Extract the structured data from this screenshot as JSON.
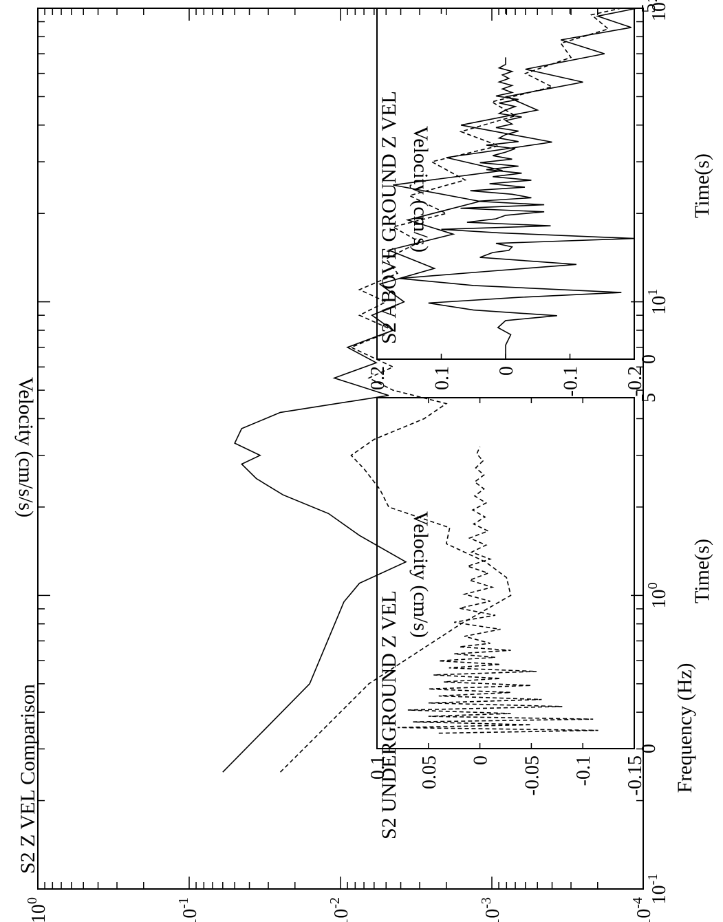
{
  "orientation": "rotated 90 degrees clockwise (landscape figure printed on portrait page)",
  "chart_data": [
    {
      "type": "line",
      "title": "S2 Z VEL Comparison",
      "xlabel": "Frequency (Hz)",
      "ylabel": "Velocity (cm/s/s)",
      "xscale": "log",
      "yscale": "log",
      "xlim": [
        0.1,
        100
      ],
      "ylim": [
        0.0001,
        1
      ],
      "xticks": [
        {
          "value": 0.1,
          "base": "10",
          "exp": "-1"
        },
        {
          "value": 1,
          "base": "10",
          "exp": "0"
        },
        {
          "value": 10,
          "base": "10",
          "exp": "1"
        },
        {
          "value": 100,
          "base": "10",
          "exp": "2"
        }
      ],
      "yticks": [
        {
          "value": 1,
          "base": "10",
          "exp": "0"
        },
        {
          "value": 0.1,
          "base": "10",
          "exp": "-1"
        },
        {
          "value": 0.01,
          "base": "10",
          "exp": "-2"
        },
        {
          "value": 0.001,
          "base": "10",
          "exp": "-3"
        },
        {
          "value": 0.0001,
          "base": "10",
          "exp": "-4"
        }
      ],
      "series": [
        {
          "style": "solid",
          "x": [
            0.25,
            0.5,
            0.95,
            1.1,
            1.3,
            1.6,
            1.9,
            2.2,
            2.5,
            2.8,
            3.0,
            3.3,
            3.7,
            4.2,
            4.8,
            5.5,
            6.2,
            7.0,
            8.0,
            9.0,
            10.0,
            11.5,
            13.0,
            15.0,
            17.0,
            19.0,
            22.0,
            25.0,
            28.0,
            31.0,
            35.0,
            40.0,
            45.0,
            50.0,
            56.0,
            62.0,
            70.0,
            78.0,
            86.0,
            94.0,
            100.0
          ],
          "y": [
            0.06,
            0.016,
            0.0095,
            0.0075,
            0.0037,
            0.0075,
            0.012,
            0.024,
            0.036,
            0.045,
            0.034,
            0.05,
            0.045,
            0.025,
            0.0048,
            0.011,
            0.0058,
            0.009,
            0.0045,
            0.0062,
            0.0038,
            0.0055,
            0.0024,
            0.0048,
            0.0018,
            0.0036,
            0.0012,
            0.0045,
            0.00085,
            0.002,
            0.0004,
            0.0016,
            0.0005,
            0.0008,
            0.00025,
            0.0006,
            0.00018,
            0.00035,
            0.00012,
            0.0002,
            0.00011
          ]
        },
        {
          "style": "dashed",
          "x": [
            0.25,
            0.5,
            0.8,
            1.0,
            1.15,
            1.3,
            1.5,
            1.7,
            2.0,
            2.3,
            2.7,
            3.0,
            3.4,
            4.0,
            4.5,
            5.0,
            5.5,
            6.0,
            7.0,
            8.0,
            9.0,
            10.0,
            11.0,
            12.5,
            14.0,
            16.0,
            18.0,
            20.0,
            23.0,
            26.0,
            30.0,
            34.0,
            38.0,
            43.0,
            48.0,
            54.0,
            60.0,
            68.0,
            76.0,
            85.0,
            95.0,
            100.0
          ],
          "y": [
            0.025,
            0.0065,
            0.0016,
            0.00075,
            0.0008,
            0.0011,
            0.002,
            0.0019,
            0.0048,
            0.0055,
            0.007,
            0.0085,
            0.006,
            0.0028,
            0.002,
            0.0045,
            0.0065,
            0.0045,
            0.0085,
            0.0045,
            0.0075,
            0.005,
            0.0075,
            0.0042,
            0.005,
            0.003,
            0.0045,
            0.002,
            0.0035,
            0.0015,
            0.0025,
            0.0009,
            0.0016,
            0.0007,
            0.001,
            0.0004,
            0.0006,
            0.0003,
            0.00035,
            0.00017,
            0.00022,
            0.00014
          ]
        }
      ]
    },
    {
      "type": "line",
      "title": "S2 ABOVE GROUND Z VEL",
      "xlabel": "Time(s)",
      "ylabel": "Velocity (cm/s)",
      "xlim": [
        0,
        5
      ],
      "ylim": [
        -0.2,
        0.2
      ],
      "xticks": [
        "0",
        "5"
      ],
      "yticks": [
        "0.2",
        "0.1",
        "0",
        "-0.1",
        "-0.2"
      ],
      "series": [
        {
          "style": "solid",
          "x": [
            0.0,
            0.2,
            0.35,
            0.45,
            0.55,
            0.62,
            0.7,
            0.8,
            0.88,
            0.95,
            1.05,
            1.15,
            1.25,
            1.35,
            1.45,
            1.52,
            1.55,
            1.6,
            1.65,
            1.72,
            1.8,
            1.85,
            1.9,
            1.95,
            2.0,
            2.05,
            2.1,
            2.15,
            2.2,
            2.25,
            2.3,
            2.35,
            2.4,
            2.45,
            2.5,
            2.55,
            2.6,
            2.65,
            2.7,
            2.75,
            2.8,
            2.85,
            2.9,
            2.95,
            3.0,
            3.05,
            3.1,
            3.15,
            3.2,
            3.25,
            3.3,
            3.35,
            3.4,
            3.45,
            3.5,
            3.55,
            3.6,
            3.65,
            3.7,
            3.75,
            3.8,
            3.85,
            3.9,
            3.95,
            4.0,
            4.05,
            4.1,
            4.15,
            4.2,
            4.3
          ],
          "y": [
            0.0,
            0.0,
            -0.008,
            0.012,
            0.0,
            -0.08,
            0.05,
            0.12,
            -0.02,
            -0.18,
            0.05,
            0.165,
            0.03,
            -0.11,
            0.04,
            0.02,
            -0.005,
            -0.01,
            0.015,
            -0.2,
            0.01,
            0.1,
            -0.07,
            0.06,
            0.015,
            0.0,
            -0.06,
            0.07,
            -0.06,
            0.045,
            -0.04,
            -0.01,
            0.055,
            -0.03,
            0.025,
            -0.04,
            0.02,
            -0.025,
            0.03,
            -0.02,
            0.04,
            -0.01,
            0.02,
            0.0,
            -0.015,
            0.03,
            -0.02,
            0.01,
            0.0,
            -0.02,
            0.015,
            -0.01,
            0.0,
            -0.025,
            0.01,
            0.0,
            -0.015,
            0.01,
            -0.02,
            0.015,
            -0.01,
            0.005,
            -0.01,
            0.01,
            -0.005,
            0.005,
            -0.01,
            0.01,
            0.0,
            0.0
          ]
        }
      ]
    },
    {
      "type": "line",
      "title": "S2 UNDERGROUND Z VEL",
      "xlabel": "Time(s)",
      "ylabel": "Velocity (cm/s)",
      "xlim": [
        0,
        5
      ],
      "ylim": [
        -0.15,
        0.1
      ],
      "xticks": [
        "0",
        "5"
      ],
      "yticks": [
        "0.1",
        "0.05",
        "0",
        "-0.05",
        "-0.1",
        "-0.15"
      ],
      "series": [
        {
          "style": "dashed",
          "x": [
            0.22,
            0.26,
            0.3,
            0.34,
            0.38,
            0.42,
            0.46,
            0.5,
            0.55,
            0.6,
            0.65,
            0.7,
            0.75,
            0.8,
            0.85,
            0.9,
            0.95,
            1.0,
            1.05,
            1.1,
            1.15,
            1.2,
            1.25,
            1.3,
            1.35,
            1.4,
            1.45,
            1.5,
            1.6,
            1.7,
            1.8,
            1.9,
            2.0,
            2.1,
            2.2,
            2.3,
            2.4,
            2.5,
            2.6,
            2.7,
            2.8,
            2.9,
            3.0,
            3.1,
            3.2,
            3.3,
            3.4,
            3.5,
            3.6,
            3.7,
            3.8,
            3.9,
            4.0,
            4.1,
            4.2,
            4.3
          ],
          "y": [
            0.04,
            -0.115,
            0.08,
            -0.05,
            0.065,
            -0.11,
            0.05,
            -0.03,
            0.07,
            -0.08,
            0.05,
            -0.06,
            0.04,
            -0.03,
            0.05,
            -0.05,
            0.035,
            -0.02,
            0.045,
            -0.055,
            0.03,
            -0.02,
            0.04,
            -0.015,
            0.025,
            -0.03,
            0.02,
            -0.01,
            0.015,
            -0.02,
            0.025,
            -0.015,
            0.02,
            -0.01,
            0.015,
            -0.012,
            0.01,
            -0.008,
            0.012,
            -0.01,
            0.008,
            -0.006,
            0.01,
            -0.008,
            0.006,
            -0.005,
            0.007,
            -0.006,
            0.005,
            -0.004,
            0.005,
            -0.004,
            0.004,
            -0.003,
            0.003,
            0.0
          ]
        }
      ]
    }
  ]
}
